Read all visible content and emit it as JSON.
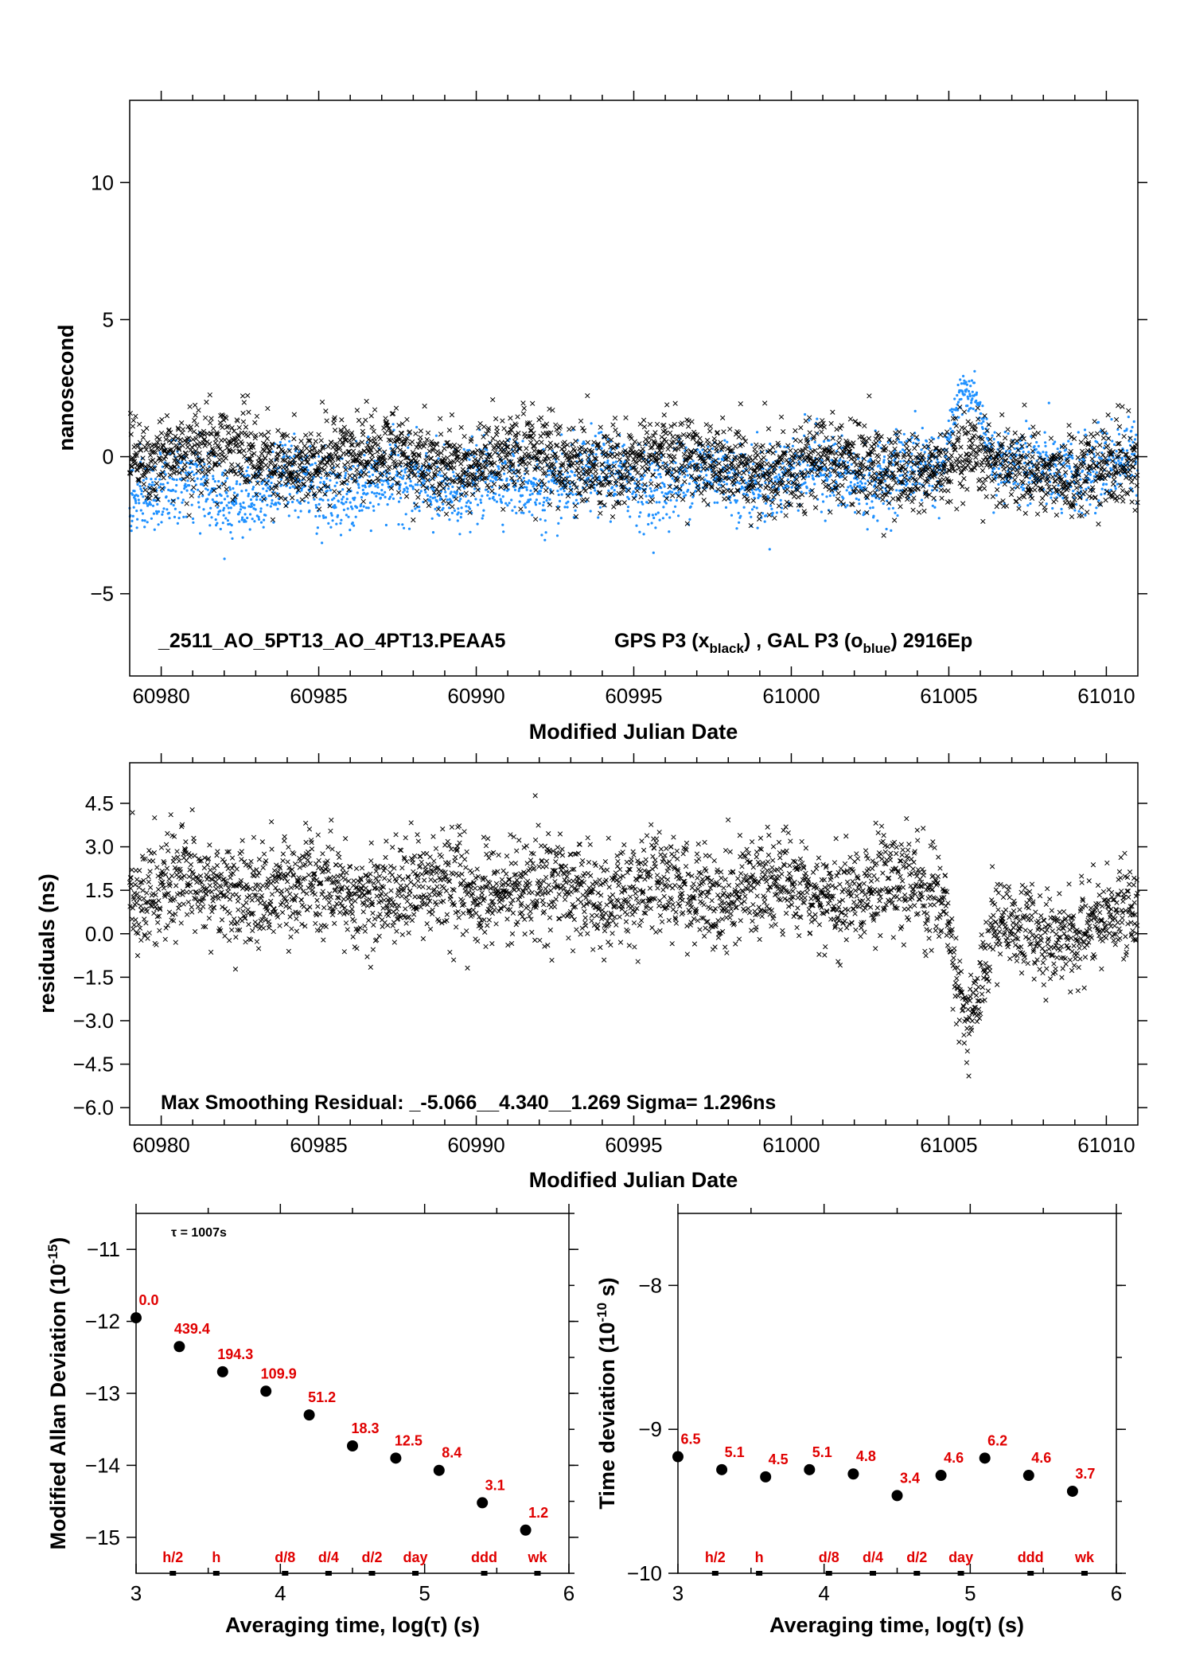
{
  "colors": {
    "gps": "#000000",
    "gal": "#1e90ff",
    "red_label": "#e00000"
  },
  "chart_data": [
    {
      "id": "clock",
      "type": "scatter",
      "ylabel": "nanosecond",
      "xlabel": "Modified Julian Date",
      "xlim": [
        60979.0,
        61011.0
      ],
      "ylim": [
        -8,
        13
      ],
      "x_ticks": [
        60980,
        60985,
        60990,
        60995,
        61000,
        61005,
        61010
      ],
      "y_ticks": [
        "−5",
        "0",
        "5",
        "10"
      ],
      "y_tick_values": [
        -5,
        0,
        5,
        10
      ],
      "annotation": {
        "id": "_2511_AO_5PT13_AO_4PT13.PEAA5",
        "gps": "GPS P3 (x",
        "gps_sub": "black",
        "sep": ") ,  GAL P3 (o",
        "gal_sub": "blue",
        "tail": ")  2916Ep"
      },
      "series": [
        {
          "name": "GPS P3",
          "marker": "x",
          "color": "#000000",
          "base": 0.1,
          "trend": -0.6,
          "spread": 0.75,
          "n": 2916
        },
        {
          "name": "GAL P3",
          "marker": "o",
          "color": "#1e90ff",
          "base": -1.3,
          "trend": 0.9,
          "spread": 0.7,
          "n": 2916,
          "excursion": {
            "x_from": 61004.8,
            "x_to": 61006.4,
            "peak": 2.4
          }
        }
      ]
    },
    {
      "id": "residuals",
      "type": "scatter",
      "ylabel": "residuals (ns)",
      "xlabel": "Modified Julian Date",
      "xlim": [
        60979.0,
        61011.0
      ],
      "ylim": [
        -6.6,
        5.9
      ],
      "x_ticks": [
        60980,
        60985,
        60990,
        60995,
        61000,
        61005,
        61010
      ],
      "y_ticks": [
        "−6.0",
        "−4.5",
        "−3.0",
        "−1.5",
        "0.0",
        "1.5",
        "3.0",
        "4.5"
      ],
      "y_tick_values": [
        -6.0,
        -4.5,
        -3.0,
        -1.5,
        0.0,
        1.5,
        3.0,
        4.5
      ],
      "annotation": "Max Smoothing Residual: _-5.066__4.340__1.269  Sigma= 1.296ns",
      "series": [
        {
          "name": "residual",
          "marker": "x",
          "color": "#000000",
          "base": 1.5,
          "spread": 0.85,
          "n": 2916,
          "dip": {
            "x_from": 61004.9,
            "x_to": 61006.4,
            "level": -2.8
          }
        }
      ]
    },
    {
      "id": "mdev",
      "type": "scatter",
      "ylabel": "Modified Allan Deviation (10",
      "ylabel_sup": "-15",
      "ylabel_tail": ")",
      "xlabel": "Averaging time, log(τ) (s)",
      "xlim": [
        3,
        6
      ],
      "ylim": [
        -15.5,
        -10.5
      ],
      "x_ticks": [
        "3",
        "4",
        "5",
        "6"
      ],
      "x_tick_values": [
        3,
        4,
        5,
        6
      ],
      "y_ticks": [
        "−15",
        "−14",
        "−13",
        "−12",
        "−11"
      ],
      "y_tick_values": [
        -15,
        -14,
        -13,
        -12,
        -11
      ],
      "annotation": "τ = 1007s",
      "x": [
        3.0,
        3.3,
        3.6,
        3.9,
        4.2,
        4.5,
        4.8,
        5.1,
        5.4,
        5.7
      ],
      "y": [
        -11.95,
        -12.35,
        -12.7,
        -12.97,
        -13.3,
        -13.73,
        -13.9,
        -14.07,
        -14.52,
        -14.9
      ],
      "point_labels": [
        "0.0",
        "439.4",
        "194.3",
        "109.9",
        "51.2",
        "18.3",
        "12.5",
        "8.4",
        "3.1",
        "1.2"
      ],
      "markers": [
        {
          "label": "h/2",
          "x": 3.255
        },
        {
          "label": "h",
          "x": 3.556
        },
        {
          "label": "d/8",
          "x": 4.033
        },
        {
          "label": "d/4",
          "x": 4.334
        },
        {
          "label": "d/2",
          "x": 4.635
        },
        {
          "label": "day",
          "x": 4.936
        },
        {
          "label": "ddd",
          "x": 5.413
        },
        {
          "label": "wk",
          "x": 5.782
        }
      ]
    },
    {
      "id": "tdev",
      "type": "scatter",
      "ylabel": "Time deviation (10",
      "ylabel_sup": "-10",
      "ylabel_tail": " s)",
      "xlabel": "Averaging time, log(τ) (s)",
      "xlim": [
        3,
        6
      ],
      "ylim": [
        -10,
        -7.5
      ],
      "x_ticks": [
        "3",
        "4",
        "5",
        "6"
      ],
      "x_tick_values": [
        3,
        4,
        5,
        6
      ],
      "y_ticks": [
        "−10",
        "−9",
        "−8"
      ],
      "y_tick_values": [
        -10,
        -9,
        -8
      ],
      "x": [
        3.0,
        3.3,
        3.6,
        3.9,
        4.2,
        4.5,
        4.8,
        5.1,
        5.4,
        5.7
      ],
      "y": [
        -9.19,
        -9.28,
        -9.33,
        -9.28,
        -9.31,
        -9.46,
        -9.32,
        -9.2,
        -9.32,
        -9.43
      ],
      "point_labels": [
        "6.5",
        "5.1",
        "4.5",
        "5.1",
        "4.8",
        "3.4",
        "4.6",
        "6.2",
        "4.6",
        "3.7"
      ],
      "markers": [
        {
          "label": "h/2",
          "x": 3.255
        },
        {
          "label": "h",
          "x": 3.556
        },
        {
          "label": "d/8",
          "x": 4.033
        },
        {
          "label": "d/4",
          "x": 4.334
        },
        {
          "label": "d/2",
          "x": 4.635
        },
        {
          "label": "day",
          "x": 4.936
        },
        {
          "label": "ddd",
          "x": 5.413
        },
        {
          "label": "wk",
          "x": 5.782
        }
      ]
    }
  ]
}
